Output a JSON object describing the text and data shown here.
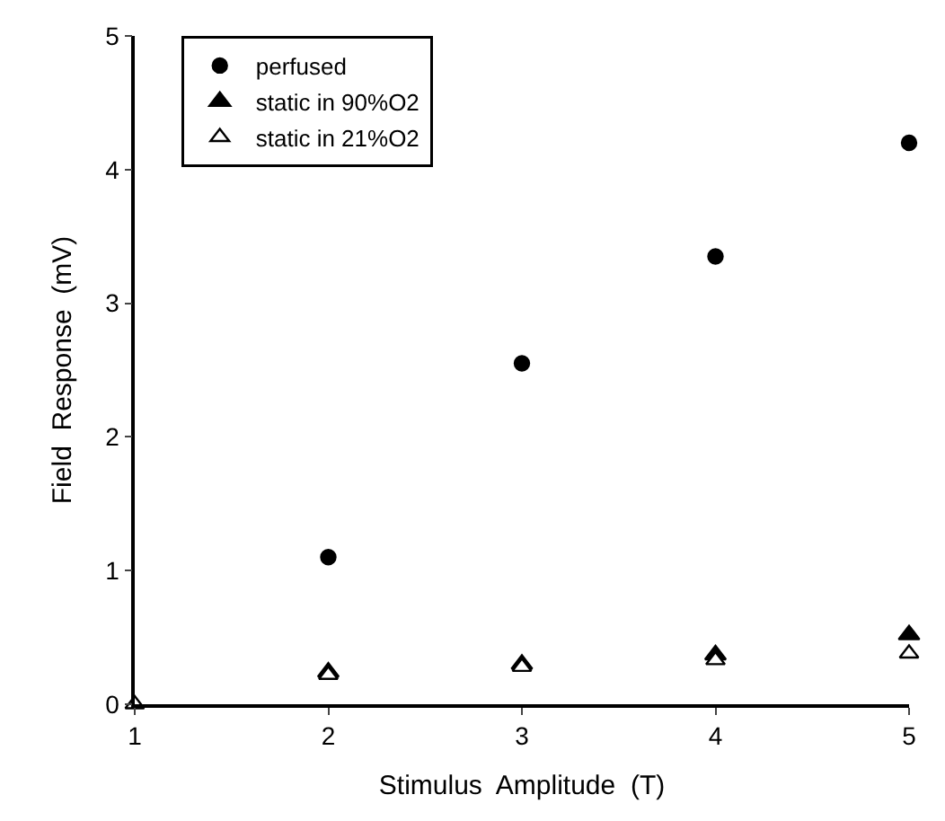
{
  "chart_data": {
    "type": "scatter",
    "xlabel": "Stimulus  Amplitude  (T)",
    "ylabel": "Field  Response  (mV)",
    "x": [
      1,
      2,
      3,
      4,
      5
    ],
    "series": [
      {
        "name": "perfused",
        "color": "#000000",
        "marker": "circle",
        "values": [
          null,
          1.1,
          2.55,
          3.35,
          4.2
        ]
      },
      {
        "name": "static in 90%O2",
        "color": "#000000",
        "marker": "triangle",
        "values": [
          null,
          0.24,
          0.3,
          0.37,
          0.52
        ]
      },
      {
        "name": "static in 21%O2",
        "color": "#ffffff",
        "marker": "triangle",
        "values": [
          0,
          0.22,
          0.28,
          0.33,
          0.38
        ]
      }
    ],
    "xlim": [
      1,
      5
    ],
    "xticks": [
      1,
      2,
      3,
      4,
      5
    ],
    "ylim": [
      0,
      5
    ],
    "yticks": [
      0,
      1,
      2,
      3,
      4,
      5
    ],
    "grid": false,
    "legend": "top left"
  }
}
